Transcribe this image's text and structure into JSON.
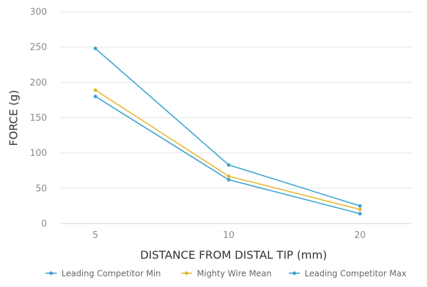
{
  "chart_data": {
    "type": "line",
    "xlabel": "DISTANCE FROM DISTAL TIP (mm)",
    "ylabel": "FORCE (g)",
    "categories": [
      "5",
      "10",
      "20"
    ],
    "ylim": [
      0,
      300
    ],
    "yticks": [
      "0",
      "50",
      "100",
      "150",
      "200",
      "250",
      "300"
    ],
    "grid": true,
    "legend_position": "bottom",
    "series": [
      {
        "name": "Leading Competitor Min",
        "values": [
          180,
          62,
          14
        ],
        "color": "#3aa2cf"
      },
      {
        "name": "Mighty Wire Mean",
        "values": [
          189,
          67,
          20
        ],
        "color": "#e8b730"
      },
      {
        "name": "Leading Competitor Max",
        "values": [
          248,
          83,
          25
        ],
        "color": "#3aa2cf"
      }
    ]
  }
}
